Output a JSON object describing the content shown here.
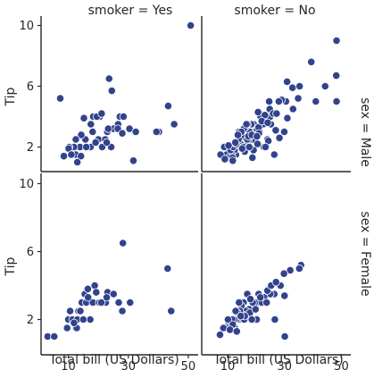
{
  "chart_data": {
    "type": "scatter",
    "x_label": "Total bill (US Dollars)",
    "y_label": "Tip",
    "x_ticks": [
      10,
      30,
      50
    ],
    "y_ticks": [
      2,
      6,
      10
    ],
    "xlim": [
      1.5,
      53
    ],
    "ylim": [
      0.5,
      10.5
    ],
    "columns": [
      "smoker = Yes",
      "smoker = No"
    ],
    "rows": [
      "sex = Male",
      "sex = Female"
    ],
    "point_color": "#32438d",
    "facets": [
      {
        "row": 0,
        "col": 0,
        "points": [
          [
            50.8,
            10.0
          ],
          [
            7.3,
            5.2
          ],
          [
            23.6,
            6.5
          ],
          [
            24.5,
            5.7
          ],
          [
            18.4,
            4.0
          ],
          [
            18.3,
            4.0
          ],
          [
            20.5,
            4.0
          ],
          [
            19.5,
            4.0
          ],
          [
            17.5,
            3.5
          ],
          [
            15.2,
            3.9
          ],
          [
            21.1,
            4.2
          ],
          [
            27.2,
            4.0
          ],
          [
            26.6,
            3.5
          ],
          [
            28.4,
            4.0
          ],
          [
            30.4,
            3.2
          ],
          [
            32.5,
            3.0
          ],
          [
            40.2,
            3.0
          ],
          [
            39.4,
            3.0
          ],
          [
            43.3,
            4.7
          ],
          [
            45.3,
            3.5
          ],
          [
            13.4,
            2.0
          ],
          [
            12.5,
            1.5
          ],
          [
            13.9,
            2.0
          ],
          [
            14.2,
            1.4
          ],
          [
            11.9,
            2.0
          ],
          [
            10.3,
            2.0
          ],
          [
            8.5,
            1.4
          ],
          [
            10.1,
            1.9
          ],
          [
            15.7,
            2.5
          ],
          [
            17.4,
            2.0
          ],
          [
            16.0,
            2.0
          ],
          [
            18.1,
            3.0
          ],
          [
            20.0,
            2.5
          ],
          [
            21.3,
            2.0
          ],
          [
            22.3,
            2.5
          ],
          [
            23.0,
            3.0
          ],
          [
            24.3,
            2.0
          ],
          [
            25.0,
            3.2
          ],
          [
            26.5,
            3.2
          ],
          [
            28.0,
            2.9
          ],
          [
            31.7,
            1.1
          ],
          [
            23.3,
            3.2
          ],
          [
            14.3,
            2.8
          ],
          [
            19.1,
            2.3
          ],
          [
            13.0,
            1.0
          ],
          [
            11.0,
            1.5
          ],
          [
            22.8,
            2.3
          ],
          [
            12.5,
            2.5
          ]
        ]
      },
      {
        "row": 0,
        "col": 1,
        "points": [
          [
            48.3,
            9.0
          ],
          [
            48.2,
            6.7
          ],
          [
            48.3,
            5.0
          ],
          [
            44.3,
            6.0
          ],
          [
            39.4,
            7.6
          ],
          [
            34.8,
            5.2
          ],
          [
            35.3,
            6.0
          ],
          [
            32.8,
            5.9
          ],
          [
            30.9,
            6.3
          ],
          [
            30.5,
            5.0
          ],
          [
            29.0,
            5.1
          ],
          [
            28.0,
            5.0
          ],
          [
            24.6,
            5.0
          ],
          [
            25.0,
            4.0
          ],
          [
            24.8,
            4.5
          ],
          [
            26.0,
            4.2
          ],
          [
            25.2,
            3.5
          ],
          [
            21.6,
            4.0
          ],
          [
            22.5,
            3.5
          ],
          [
            21.2,
            3.0
          ],
          [
            20.7,
            4.3
          ],
          [
            23.1,
            4.1
          ],
          [
            24.0,
            2.5
          ],
          [
            19.5,
            3.0
          ],
          [
            20.3,
            3.2
          ],
          [
            19.2,
            3.5
          ],
          [
            18.3,
            3.5
          ],
          [
            18.0,
            2.5
          ],
          [
            16.4,
            2.1
          ],
          [
            17.8,
            3.0
          ],
          [
            16.3,
            3.3
          ],
          [
            15.0,
            2.0
          ],
          [
            15.4,
            2.7
          ],
          [
            16.9,
            2.5
          ],
          [
            14.5,
            2.2
          ],
          [
            13.4,
            2.0
          ],
          [
            12.9,
            1.5
          ],
          [
            12.4,
            1.8
          ],
          [
            11.4,
            1.5
          ],
          [
            10.3,
            1.7
          ],
          [
            9.6,
            1.5
          ],
          [
            10.5,
            1.3
          ],
          [
            7.5,
            1.5
          ],
          [
            8.8,
            2.0
          ],
          [
            11.0,
            1.8
          ],
          [
            13.8,
            2.5
          ],
          [
            15.5,
            2.0
          ],
          [
            17.3,
            2.7
          ],
          [
            20.9,
            3.3
          ],
          [
            18.7,
            1.3
          ],
          [
            22.7,
            2.0
          ],
          [
            14.0,
            3.0
          ],
          [
            12.0,
            2.0
          ],
          [
            21.0,
            2.9
          ],
          [
            19.8,
            2.4
          ],
          [
            16.0,
            1.7
          ],
          [
            13.0,
            2.2
          ],
          [
            11.7,
            1.3
          ],
          [
            17.0,
            3.5
          ],
          [
            18.5,
            2.8
          ],
          [
            22.0,
            3.7
          ],
          [
            15.7,
            3.2
          ],
          [
            14.8,
            3.0
          ],
          [
            26.9,
            3.1
          ],
          [
            24.3,
            2.4
          ],
          [
            28.2,
            2.6
          ],
          [
            29.9,
            3.0
          ],
          [
            33.0,
            4.5
          ],
          [
            41.0,
            5.0
          ],
          [
            27.2,
            4.2
          ],
          [
            26.4,
            1.5
          ],
          [
            20.3,
            2.7
          ],
          [
            19.1,
            1.8
          ],
          [
            16.6,
            3.5
          ],
          [
            15.1,
            1.9
          ],
          [
            12.7,
            2.3
          ],
          [
            10.3,
            2.1
          ],
          [
            9.0,
            1.2
          ],
          [
            11.8,
            1.1
          ],
          [
            13.6,
            2.8
          ],
          [
            17.6,
            2.0
          ],
          [
            24.1,
            3.6
          ],
          [
            20.5,
            2.2
          ],
          [
            31.0,
            3.9
          ],
          [
            23.3,
            2.0
          ]
        ]
      },
      {
        "row": 1,
        "col": 0,
        "points": [
          [
            3.1,
            1.0
          ],
          [
            5.3,
            1.0
          ],
          [
            9.6,
            1.5
          ],
          [
            10.0,
            2.0
          ],
          [
            10.6,
            2.5
          ],
          [
            11.4,
            2.0
          ],
          [
            12.5,
            1.5
          ],
          [
            12.9,
            1.5
          ],
          [
            13.4,
            2.5
          ],
          [
            14.0,
            2.5
          ],
          [
            14.5,
            3.0
          ],
          [
            14.8,
            2.0
          ],
          [
            15.5,
            3.5
          ],
          [
            16.0,
            3.0
          ],
          [
            16.5,
            3.8
          ],
          [
            17.3,
            2.0
          ],
          [
            18.2,
            3.0
          ],
          [
            18.8,
            4.0
          ],
          [
            19.3,
            3.6
          ],
          [
            20.3,
            3.0
          ],
          [
            22.5,
            3.0
          ],
          [
            23.1,
            3.6
          ],
          [
            25.1,
            3.5
          ],
          [
            26.8,
            3.0
          ],
          [
            28.2,
            6.5
          ],
          [
            30.6,
            3.0
          ],
          [
            43.1,
            5.0
          ],
          [
            44.3,
            2.5
          ],
          [
            12.8,
            1.5
          ],
          [
            16.6,
            3.3
          ],
          [
            21.0,
            3.0
          ],
          [
            28.0,
            2.5
          ],
          [
            13.0,
            2.0
          ],
          [
            11.9,
            1.8
          ],
          [
            15.0,
            2.0
          ],
          [
            22.8,
            3.3
          ]
        ]
      },
      {
        "row": 1,
        "col": 1,
        "points": [
          [
            35.8,
            5.2
          ],
          [
            35.2,
            5.0
          ],
          [
            32.0,
            4.9
          ],
          [
            29.8,
            4.7
          ],
          [
            30.0,
            3.4
          ],
          [
            28.6,
            4.0
          ],
          [
            26.4,
            3.5
          ],
          [
            25.0,
            3.5
          ],
          [
            24.0,
            3.7
          ],
          [
            22.8,
            3.3
          ],
          [
            20.9,
            3.5
          ],
          [
            20.7,
            3.0
          ],
          [
            19.6,
            3.0
          ],
          [
            18.8,
            3.0
          ],
          [
            18.4,
            2.5
          ],
          [
            17.5,
            2.6
          ],
          [
            16.9,
            3.5
          ],
          [
            16.4,
            2.5
          ],
          [
            15.6,
            3.0
          ],
          [
            15.2,
            2.3
          ],
          [
            14.8,
            2.8
          ],
          [
            14.3,
            2.5
          ],
          [
            13.9,
            2.0
          ],
          [
            13.4,
            2.4
          ],
          [
            13.0,
            2.0
          ],
          [
            12.5,
            1.5
          ],
          [
            12.3,
            2.0
          ],
          [
            11.6,
            2.0
          ],
          [
            11.0,
            1.6
          ],
          [
            10.3,
            1.7
          ],
          [
            10.1,
            2.0
          ],
          [
            9.6,
            1.5
          ],
          [
            8.5,
            1.5
          ],
          [
            7.3,
            1.1
          ],
          [
            14.0,
            3.0
          ],
          [
            15.8,
            2.0
          ],
          [
            17.8,
            2.4
          ],
          [
            18.0,
            3.2
          ],
          [
            19.8,
            2.6
          ],
          [
            22.0,
            3.0
          ],
          [
            25.3,
            4.0
          ],
          [
            27.0,
            4.2
          ],
          [
            30.1,
            1.0
          ],
          [
            26.6,
            2.0
          ],
          [
            20.2,
            2.0
          ],
          [
            16.0,
            2.2
          ],
          [
            12.8,
            2.5
          ],
          [
            11.8,
            1.7
          ],
          [
            14.6,
            2.2
          ],
          [
            10.8,
            1.4
          ],
          [
            13.2,
            1.3
          ],
          [
            21.5,
            3.3
          ],
          [
            23.7,
            3.0
          ],
          [
            18.5,
            2.0
          ]
        ]
      }
    ]
  }
}
